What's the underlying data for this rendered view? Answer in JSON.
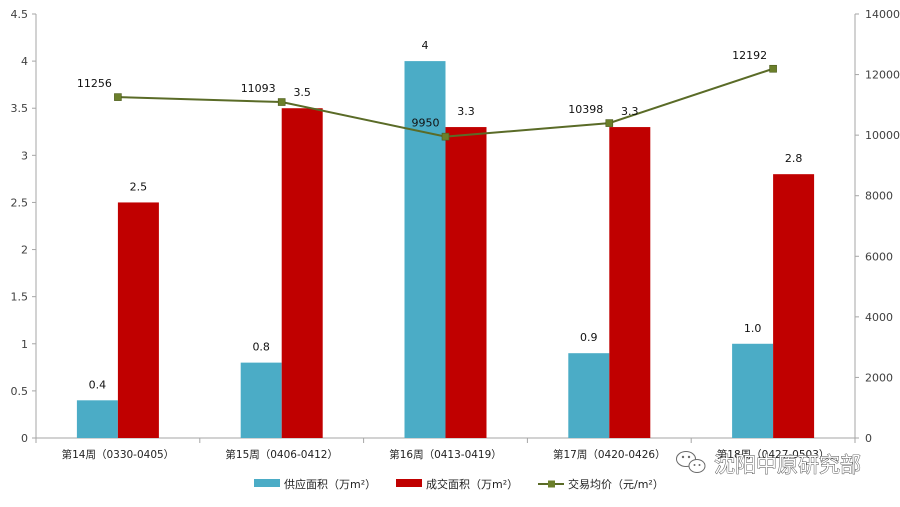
{
  "chart_data": {
    "type": "bar",
    "categories": [
      "第14周（0330-0405）",
      "第15周（0406-0412）",
      "第16周（0413-0419）",
      "第17周（0420-0426）",
      "第18周（0427-0503）"
    ],
    "series": [
      {
        "name": "供应面积（万m²）",
        "type": "bar",
        "axis": "left",
        "color": "#4bacc6",
        "values": [
          0.4,
          0.8,
          4,
          0.9,
          1.0
        ],
        "labels": [
          "0.4",
          "0.8",
          "4",
          "0.9",
          "1.0"
        ]
      },
      {
        "name": "成交面积（万m²）",
        "type": "bar",
        "axis": "left",
        "color": "#c00000",
        "values": [
          2.5,
          3.5,
          3.3,
          3.3,
          2.8
        ],
        "labels": [
          "2.5",
          "3.5",
          "3.3",
          "3.3",
          "2.8"
        ]
      },
      {
        "name": "交易均价（元/m²）",
        "type": "line",
        "axis": "right",
        "color": "#5a6b27",
        "values": [
          11256,
          11093,
          9950,
          10398,
          12192
        ],
        "labels": [
          "11256",
          "11093",
          "9950",
          "10398",
          "12192"
        ]
      }
    ],
    "y_left": {
      "min": 0,
      "max": 4.5,
      "step": 0.5,
      "ticks": [
        "0",
        "0.5",
        "1",
        "1.5",
        "2",
        "2.5",
        "3",
        "3.5",
        "4",
        "4.5"
      ]
    },
    "y_right": {
      "min": 0,
      "max": 14000,
      "step": 2000,
      "ticks": [
        "0",
        "2000",
        "4000",
        "6000",
        "8000",
        "10000",
        "12000",
        "14000"
      ]
    },
    "grid": false,
    "legend_position": "bottom-center"
  },
  "watermark": {
    "text": "沈阳中原研究部",
    "icon": "wechat-icon"
  }
}
